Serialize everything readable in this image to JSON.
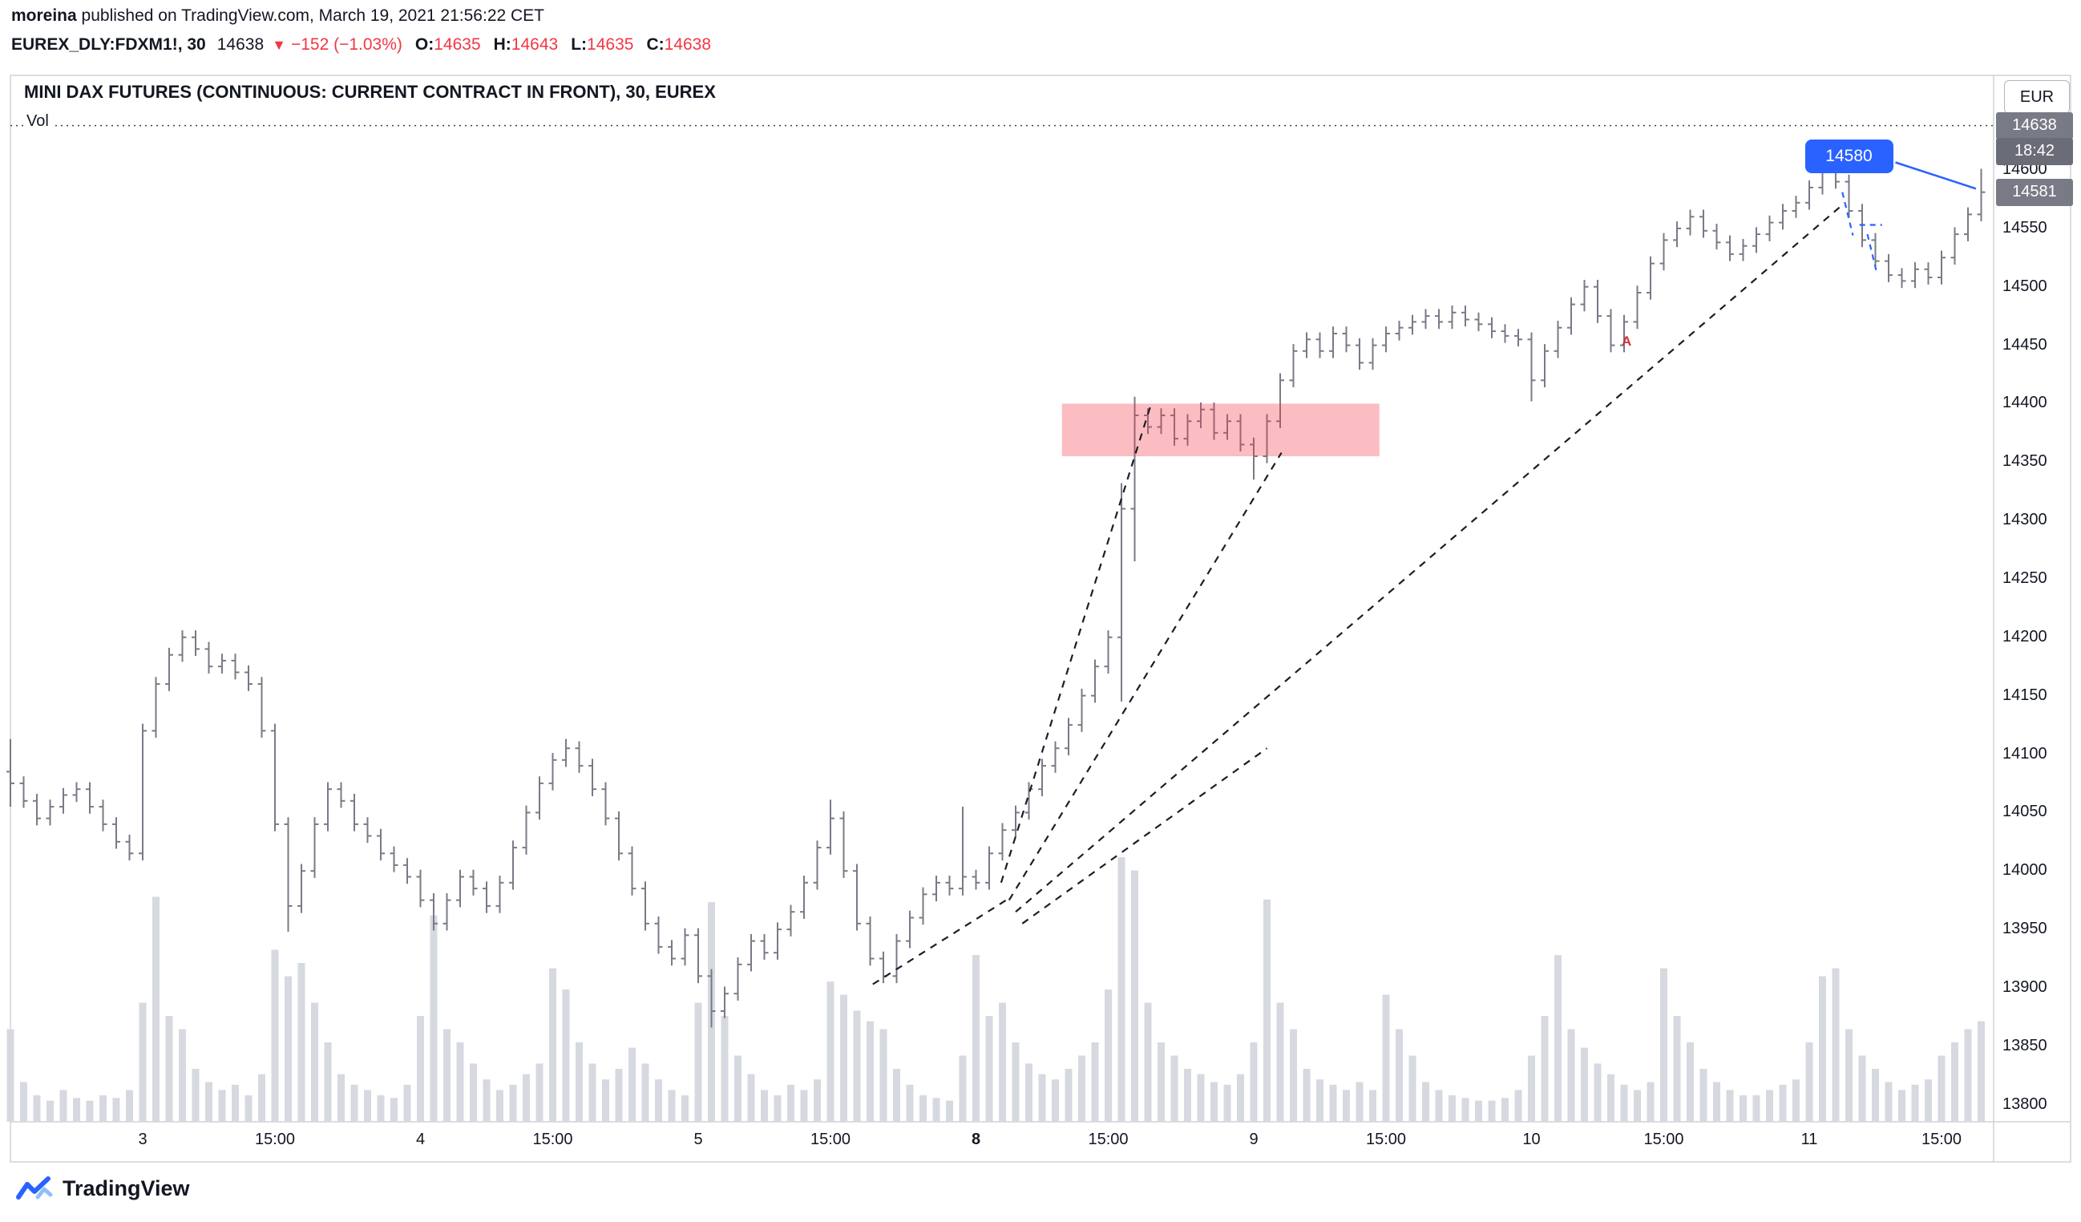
{
  "header": {
    "byline_name": "moreina",
    "byline_rest": " published on TradingView.com, March 19, 2021 21:56:22 CET",
    "symbol": "EUREX_DLY:FDXM1!, 30",
    "last_price": "14638",
    "down_arrow": "▼",
    "change": "−152 (−1.03%)",
    "ohlc": [
      {
        "label": "O:",
        "value": "14635"
      },
      {
        "label": "H:",
        "value": "14643"
      },
      {
        "label": "L:",
        "value": "14635"
      },
      {
        "label": "C:",
        "value": "14638"
      }
    ]
  },
  "chart": {
    "title": "MINI DAX FUTURES (CONTINUOUS: CURRENT CONTRACT IN FRONT), 30, EUREX",
    "vol_label": "Vol",
    "currency": "EUR"
  },
  "chart_data": {
    "type": "ohlc_with_volume",
    "title": "MINI DAX FUTURES (CONTINUOUS: CURRENT CONTRACT IN FRONT), 30, EUREX",
    "interval": "30",
    "ylim": [
      13780,
      14680
    ],
    "y_axis": {
      "ticks": [
        14600,
        14550,
        14500,
        14450,
        14400,
        14350,
        14300,
        14250,
        14200,
        14150,
        14100,
        14050,
        14000,
        13950,
        13900,
        13850,
        13800
      ],
      "labels": [
        {
          "text": "14638",
          "p": 14638,
          "bg": "#787b86"
        },
        {
          "text": "18:42",
          "p": 14616,
          "bg": "#6a6d78"
        },
        {
          "text": "14581",
          "p": 14581,
          "bg": "#787b86"
        }
      ]
    },
    "x_axis": {
      "labels": [
        {
          "text": "3",
          "i": 10
        },
        {
          "text": "15:00",
          "i": 20
        },
        {
          "text": "4",
          "i": 31
        },
        {
          "text": "15:00",
          "i": 41
        },
        {
          "text": "5",
          "i": 52
        },
        {
          "text": "15:00",
          "i": 62
        },
        {
          "text": "8",
          "i": 73,
          "bold": true
        },
        {
          "text": "15:00",
          "i": 83
        },
        {
          "text": "9",
          "i": 94
        },
        {
          "text": "15:00",
          "i": 104
        },
        {
          "text": "10",
          "i": 115
        },
        {
          "text": "15:00",
          "i": 125
        },
        {
          "text": "11",
          "i": 136
        },
        {
          "text": "15:00",
          "i": 146
        }
      ]
    },
    "bars": {
      "first_open": 14085,
      "closes": [
        14075,
        14060,
        14045,
        14055,
        14065,
        14070,
        14055,
        14040,
        14025,
        14015,
        14120,
        14160,
        14185,
        14200,
        14190,
        14175,
        14180,
        14170,
        14160,
        14120,
        14040,
        13970,
        14000,
        14040,
        14070,
        14060,
        14040,
        14030,
        14015,
        14005,
        13995,
        13975,
        13955,
        13975,
        13995,
        13985,
        13970,
        13990,
        14020,
        14050,
        14075,
        14095,
        14105,
        14090,
        14070,
        14045,
        14015,
        13985,
        13955,
        13935,
        13925,
        13945,
        13910,
        13880,
        13895,
        13920,
        13940,
        13930,
        13950,
        13965,
        13990,
        14020,
        14045,
        14000,
        13955,
        13925,
        13910,
        13940,
        13960,
        13980,
        13990,
        13985,
        13995,
        13990,
        14015,
        14035,
        14050,
        14070,
        14090,
        14105,
        14125,
        14150,
        14175,
        14200,
        14310,
        14390,
        14380,
        14390,
        14370,
        14385,
        14395,
        14375,
        14385,
        14365,
        14355,
        14385,
        14420,
        14445,
        14455,
        14445,
        14460,
        14450,
        14435,
        14450,
        14460,
        14465,
        14470,
        14475,
        14470,
        14478,
        14472,
        14468,
        14462,
        14458,
        14455,
        14420,
        14445,
        14465,
        14485,
        14500,
        14475,
        14450,
        14470,
        14495,
        14520,
        14540,
        14550,
        14560,
        14548,
        14538,
        14528,
        14535,
        14545,
        14555,
        14565,
        14572,
        14585,
        14600,
        14590,
        14565,
        14540,
        14522,
        14510,
        14505,
        14515,
        14508,
        14525,
        14545,
        14562,
        14581
      ],
      "volumes": [
        35,
        15,
        10,
        8,
        12,
        9,
        8,
        10,
        9,
        12,
        45,
        85,
        40,
        35,
        20,
        15,
        12,
        14,
        10,
        18,
        65,
        55,
        60,
        45,
        30,
        18,
        14,
        12,
        10,
        9,
        14,
        40,
        78,
        35,
        30,
        22,
        16,
        12,
        14,
        18,
        22,
        58,
        50,
        30,
        22,
        16,
        20,
        28,
        22,
        16,
        12,
        10,
        45,
        83,
        40,
        25,
        18,
        12,
        10,
        14,
        12,
        16,
        53,
        48,
        42,
        38,
        35,
        20,
        14,
        10,
        9,
        8,
        25,
        63,
        40,
        45,
        30,
        22,
        18,
        16,
        20,
        25,
        30,
        50,
        100,
        95,
        45,
        30,
        25,
        20,
        18,
        15,
        14,
        18,
        30,
        84,
        45,
        35,
        20,
        16,
        14,
        12,
        15,
        12,
        48,
        35,
        25,
        15,
        12,
        10,
        9,
        8,
        8,
        9,
        12,
        25,
        40,
        63,
        35,
        28,
        22,
        18,
        14,
        12,
        15,
        58,
        40,
        30,
        20,
        15,
        12,
        10,
        10,
        12,
        14,
        16,
        30,
        55,
        58,
        35,
        25,
        20,
        15,
        12,
        14,
        16,
        25,
        30,
        35,
        38
      ],
      "wick_extras": {
        "0": [
          28,
          20
        ],
        "21": [
          6,
          22
        ],
        "42": [
          8,
          6
        ],
        "53": [
          6,
          14
        ],
        "62": [
          16,
          6
        ],
        "72": [
          60,
          6
        ],
        "84": [
          22,
          55
        ],
        "85": [
          16,
          45
        ],
        "94": [
          6,
          20
        ],
        "115": [
          6,
          18
        ],
        "137": [
          12,
          6
        ],
        "149": [
          20,
          6
        ]
      }
    },
    "annotations": {
      "price_line": {
        "p": 14638
      },
      "supply_zone": {
        "i1": 79.5,
        "i2": 103.5,
        "p1": 14400,
        "p2": 14355,
        "color": "#f23645",
        "opacity": 0.33
      },
      "trendlines": [
        [
          65.2,
          13903,
          75.7,
          13978
        ],
        [
          74.9,
          13990,
          86.3,
          14402
        ],
        [
          75.5,
          13975,
          96.1,
          14358
        ],
        [
          76.0,
          13965,
          138.7,
          14572
        ],
        [
          76.5,
          13955,
          95.0,
          14105
        ]
      ],
      "sketch": {
        "color": "#2962ff",
        "segments": [
          [
            138.5,
            14581,
            139.3,
            14544
          ],
          [
            139.8,
            14553,
            141.5,
            14553
          ],
          [
            140.4,
            14545,
            141.1,
            14512
          ]
        ]
      },
      "callout": {
        "text": "14580",
        "i": 139,
        "p": 14612,
        "tip_i": 148.6,
        "tip_p": 14584,
        "color": "#2962ff"
      },
      "letter_marker": {
        "text": "A",
        "i": 122.3,
        "p": 14452,
        "color": "#cc2f3c"
      }
    }
  },
  "footer": {
    "brand": "TradingView"
  }
}
